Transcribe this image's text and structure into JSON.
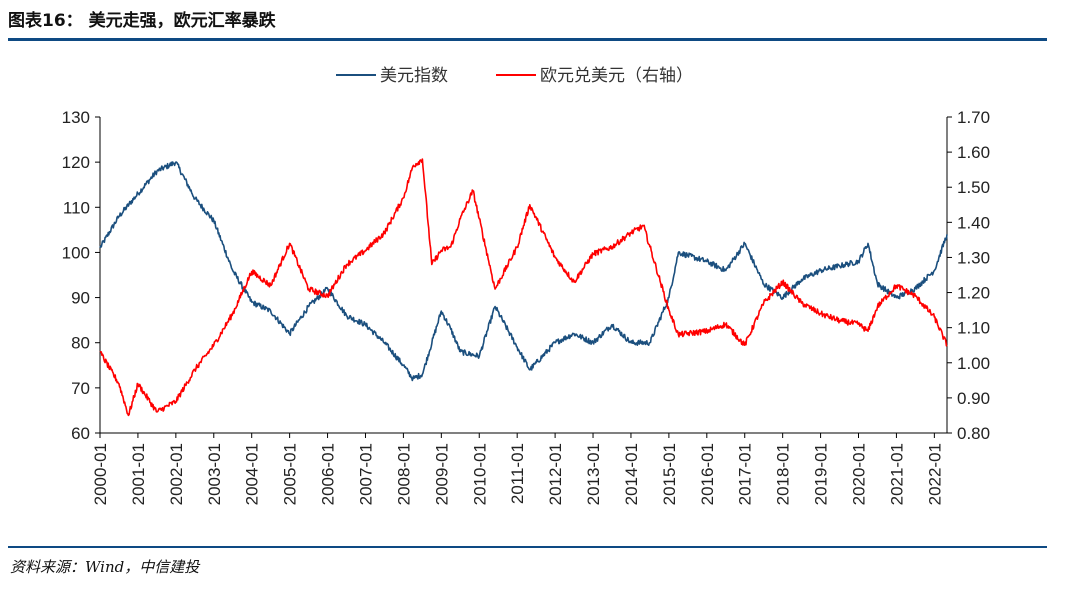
{
  "header": {
    "title": "图表16：  美元走强，欧元汇率暴跌"
  },
  "footer": {
    "source": "资料来源：Wind，中信建投"
  },
  "colors": {
    "usd_index": "#1b4f7e",
    "eurusd": "#ff0000",
    "rule": "#0e4a83"
  },
  "chart_data": {
    "type": "line",
    "title": "",
    "legend": {
      "position": "top-center",
      "entries": [
        "美元指数",
        "欧元兑美元（右轴）"
      ]
    },
    "x_ticks": [
      "2000-01",
      "2001-01",
      "2002-01",
      "2003-01",
      "2004-01",
      "2005-01",
      "2006-01",
      "2007-01",
      "2008-01",
      "2009-01",
      "2010-01",
      "2011-01",
      "2012-01",
      "2013-01",
      "2014-01",
      "2015-01",
      "2016-01",
      "2017-01",
      "2018-01",
      "2019-01",
      "2020-01",
      "2021-01",
      "2022-01"
    ],
    "x_range": [
      "2000-01",
      "2022-05"
    ],
    "y_left": {
      "range": [
        60,
        130
      ],
      "ticks": [
        "60",
        "70",
        "80",
        "90",
        "100",
        "110",
        "120",
        "130"
      ]
    },
    "y_right": {
      "range": [
        0.8,
        1.7
      ],
      "ticks": [
        "0.80",
        "0.90",
        "1.00",
        "1.10",
        "1.20",
        "1.30",
        "1.40",
        "1.50",
        "1.60",
        "1.70"
      ]
    },
    "grid": false,
    "series": [
      {
        "name": "美元指数",
        "axis": "left",
        "x": [
          "2000-01",
          "2000-07",
          "2001-01",
          "2001-07",
          "2002-01",
          "2002-07",
          "2003-01",
          "2003-07",
          "2004-01",
          "2004-07",
          "2005-01",
          "2005-07",
          "2006-01",
          "2006-07",
          "2007-01",
          "2007-07",
          "2008-01",
          "2008-04",
          "2008-07",
          "2009-01",
          "2009-04",
          "2009-07",
          "2010-01",
          "2010-06",
          "2011-01",
          "2011-05",
          "2012-01",
          "2012-07",
          "2013-01",
          "2013-07",
          "2014-01",
          "2014-07",
          "2015-01",
          "2015-04",
          "2016-01",
          "2016-07",
          "2017-01",
          "2017-07",
          "2018-01",
          "2018-07",
          "2019-01",
          "2019-07",
          "2020-01",
          "2020-04",
          "2020-07",
          "2021-01",
          "2021-07",
          "2022-01",
          "2022-05"
        ],
        "y": [
          101,
          108,
          113,
          118,
          120,
          112,
          107,
          96,
          89,
          87,
          82,
          88,
          92,
          86,
          84,
          80,
          75,
          72,
          73,
          87,
          83,
          78,
          77,
          88,
          79,
          74,
          80,
          82,
          80,
          84,
          80,
          80,
          90,
          100,
          98,
          96,
          102,
          93,
          90,
          94,
          96,
          97,
          98,
          102,
          93,
          90,
          92,
          96,
          104
        ]
      },
      {
        "name": "欧元兑美元（右轴）",
        "axis": "right",
        "x": [
          "2000-01",
          "2000-07",
          "2000-10",
          "2001-01",
          "2001-07",
          "2002-01",
          "2002-07",
          "2003-01",
          "2003-07",
          "2004-01",
          "2004-07",
          "2005-01",
          "2005-07",
          "2006-01",
          "2006-07",
          "2007-01",
          "2007-07",
          "2008-01",
          "2008-04",
          "2008-07",
          "2008-10",
          "2009-01",
          "2009-04",
          "2009-07",
          "2009-11",
          "2010-06",
          "2011-01",
          "2011-05",
          "2012-01",
          "2012-07",
          "2013-01",
          "2013-07",
          "2014-01",
          "2014-05",
          "2015-01",
          "2015-04",
          "2016-01",
          "2016-07",
          "2017-01",
          "2017-07",
          "2018-01",
          "2018-07",
          "2019-01",
          "2019-07",
          "2020-01",
          "2020-04",
          "2020-07",
          "2021-01",
          "2021-07",
          "2022-01",
          "2022-05"
        ],
        "y": [
          1.03,
          0.94,
          0.85,
          0.94,
          0.86,
          0.89,
          0.98,
          1.05,
          1.14,
          1.26,
          1.22,
          1.34,
          1.21,
          1.19,
          1.28,
          1.32,
          1.37,
          1.47,
          1.56,
          1.58,
          1.28,
          1.32,
          1.33,
          1.41,
          1.49,
          1.21,
          1.33,
          1.45,
          1.3,
          1.23,
          1.31,
          1.33,
          1.37,
          1.39,
          1.15,
          1.08,
          1.09,
          1.11,
          1.05,
          1.17,
          1.23,
          1.17,
          1.14,
          1.12,
          1.11,
          1.09,
          1.16,
          1.22,
          1.19,
          1.13,
          1.05
        ]
      }
    ]
  }
}
